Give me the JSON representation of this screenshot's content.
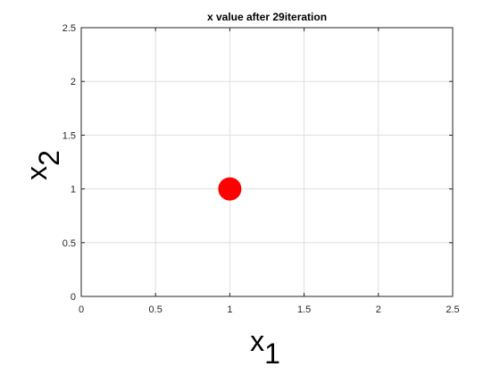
{
  "chart_data": {
    "type": "scatter",
    "title": "x value after 29iteration",
    "xlabel": {
      "base": "x",
      "subscript": "1"
    },
    "ylabel": {
      "base": "x",
      "subscript": "2"
    },
    "xlim": [
      0,
      2.5
    ],
    "ylim": [
      0,
      2.5
    ],
    "xticks": [
      0,
      0.5,
      1,
      1.5,
      2,
      2.5
    ],
    "xtick_labels": [
      "0",
      "0.5",
      "1",
      "1.5",
      "2",
      "2.5"
    ],
    "yticks": [
      0,
      0.5,
      1,
      1.5,
      2,
      2.5
    ],
    "ytick_labels": [
      "0",
      "0.5",
      "1",
      "1.5",
      "2",
      "2.5"
    ],
    "grid": true,
    "points": [
      {
        "x": 1,
        "y": 1
      }
    ],
    "marker": "filled-circle",
    "point_color": "#ff0000",
    "grid_color": "#dfdfdf",
    "axis_color": "#262626"
  }
}
